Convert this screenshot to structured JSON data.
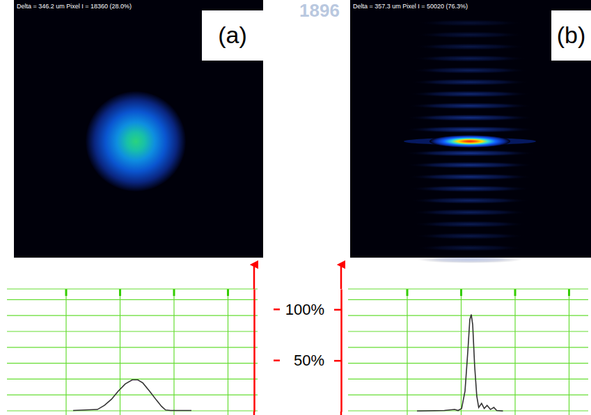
{
  "chart_data": [
    {
      "type": "line",
      "title": "(a)",
      "subtitle": "Delta = 346.2 um Pixel I = 18360 (28.0%)",
      "x": [
        26.4,
        36.1,
        38.9,
        41.7,
        44.4,
        47.2,
        50.0,
        52.2,
        54.2,
        56.9,
        59.7,
        61.7,
        63.3,
        65.3,
        73.6
      ],
      "values": [
        1,
        2,
        6,
        12,
        20,
        27,
        31,
        31,
        28,
        20,
        11,
        5,
        1.5,
        1,
        1
      ],
      "xlim": [
        0,
        100
      ],
      "ylim": [
        0,
        120
      ],
      "tick_labels": false,
      "grid": true,
      "color": "#333333"
    },
    {
      "type": "line",
      "title": "(b)",
      "subtitle": "Delta = 357.3 um Pixel I = 50020 (76.3%)",
      "x": [
        28.7,
        40.1,
        44.4,
        45.8,
        47.3,
        48.7,
        49.9,
        50.7,
        51.3,
        51.9,
        52.7,
        53.6,
        54.4,
        55.6,
        56.7,
        57.9,
        59.3,
        60.7,
        61.9,
        64.5
      ],
      "values": [
        0.5,
        1,
        2,
        1,
        3,
        20,
        60,
        90,
        95,
        85,
        45,
        15,
        4,
        8,
        3,
        6,
        2,
        4,
        1,
        0.5
      ],
      "xlim": [
        0,
        100
      ],
      "ylim": [
        0,
        120
      ],
      "yticks": [
        {
          "value": 50,
          "label": "50%"
        },
        {
          "value": 100,
          "label": "100%"
        }
      ],
      "tick_labels": "y",
      "grid": true,
      "color": "#333333"
    }
  ],
  "watermark": "1896"
}
